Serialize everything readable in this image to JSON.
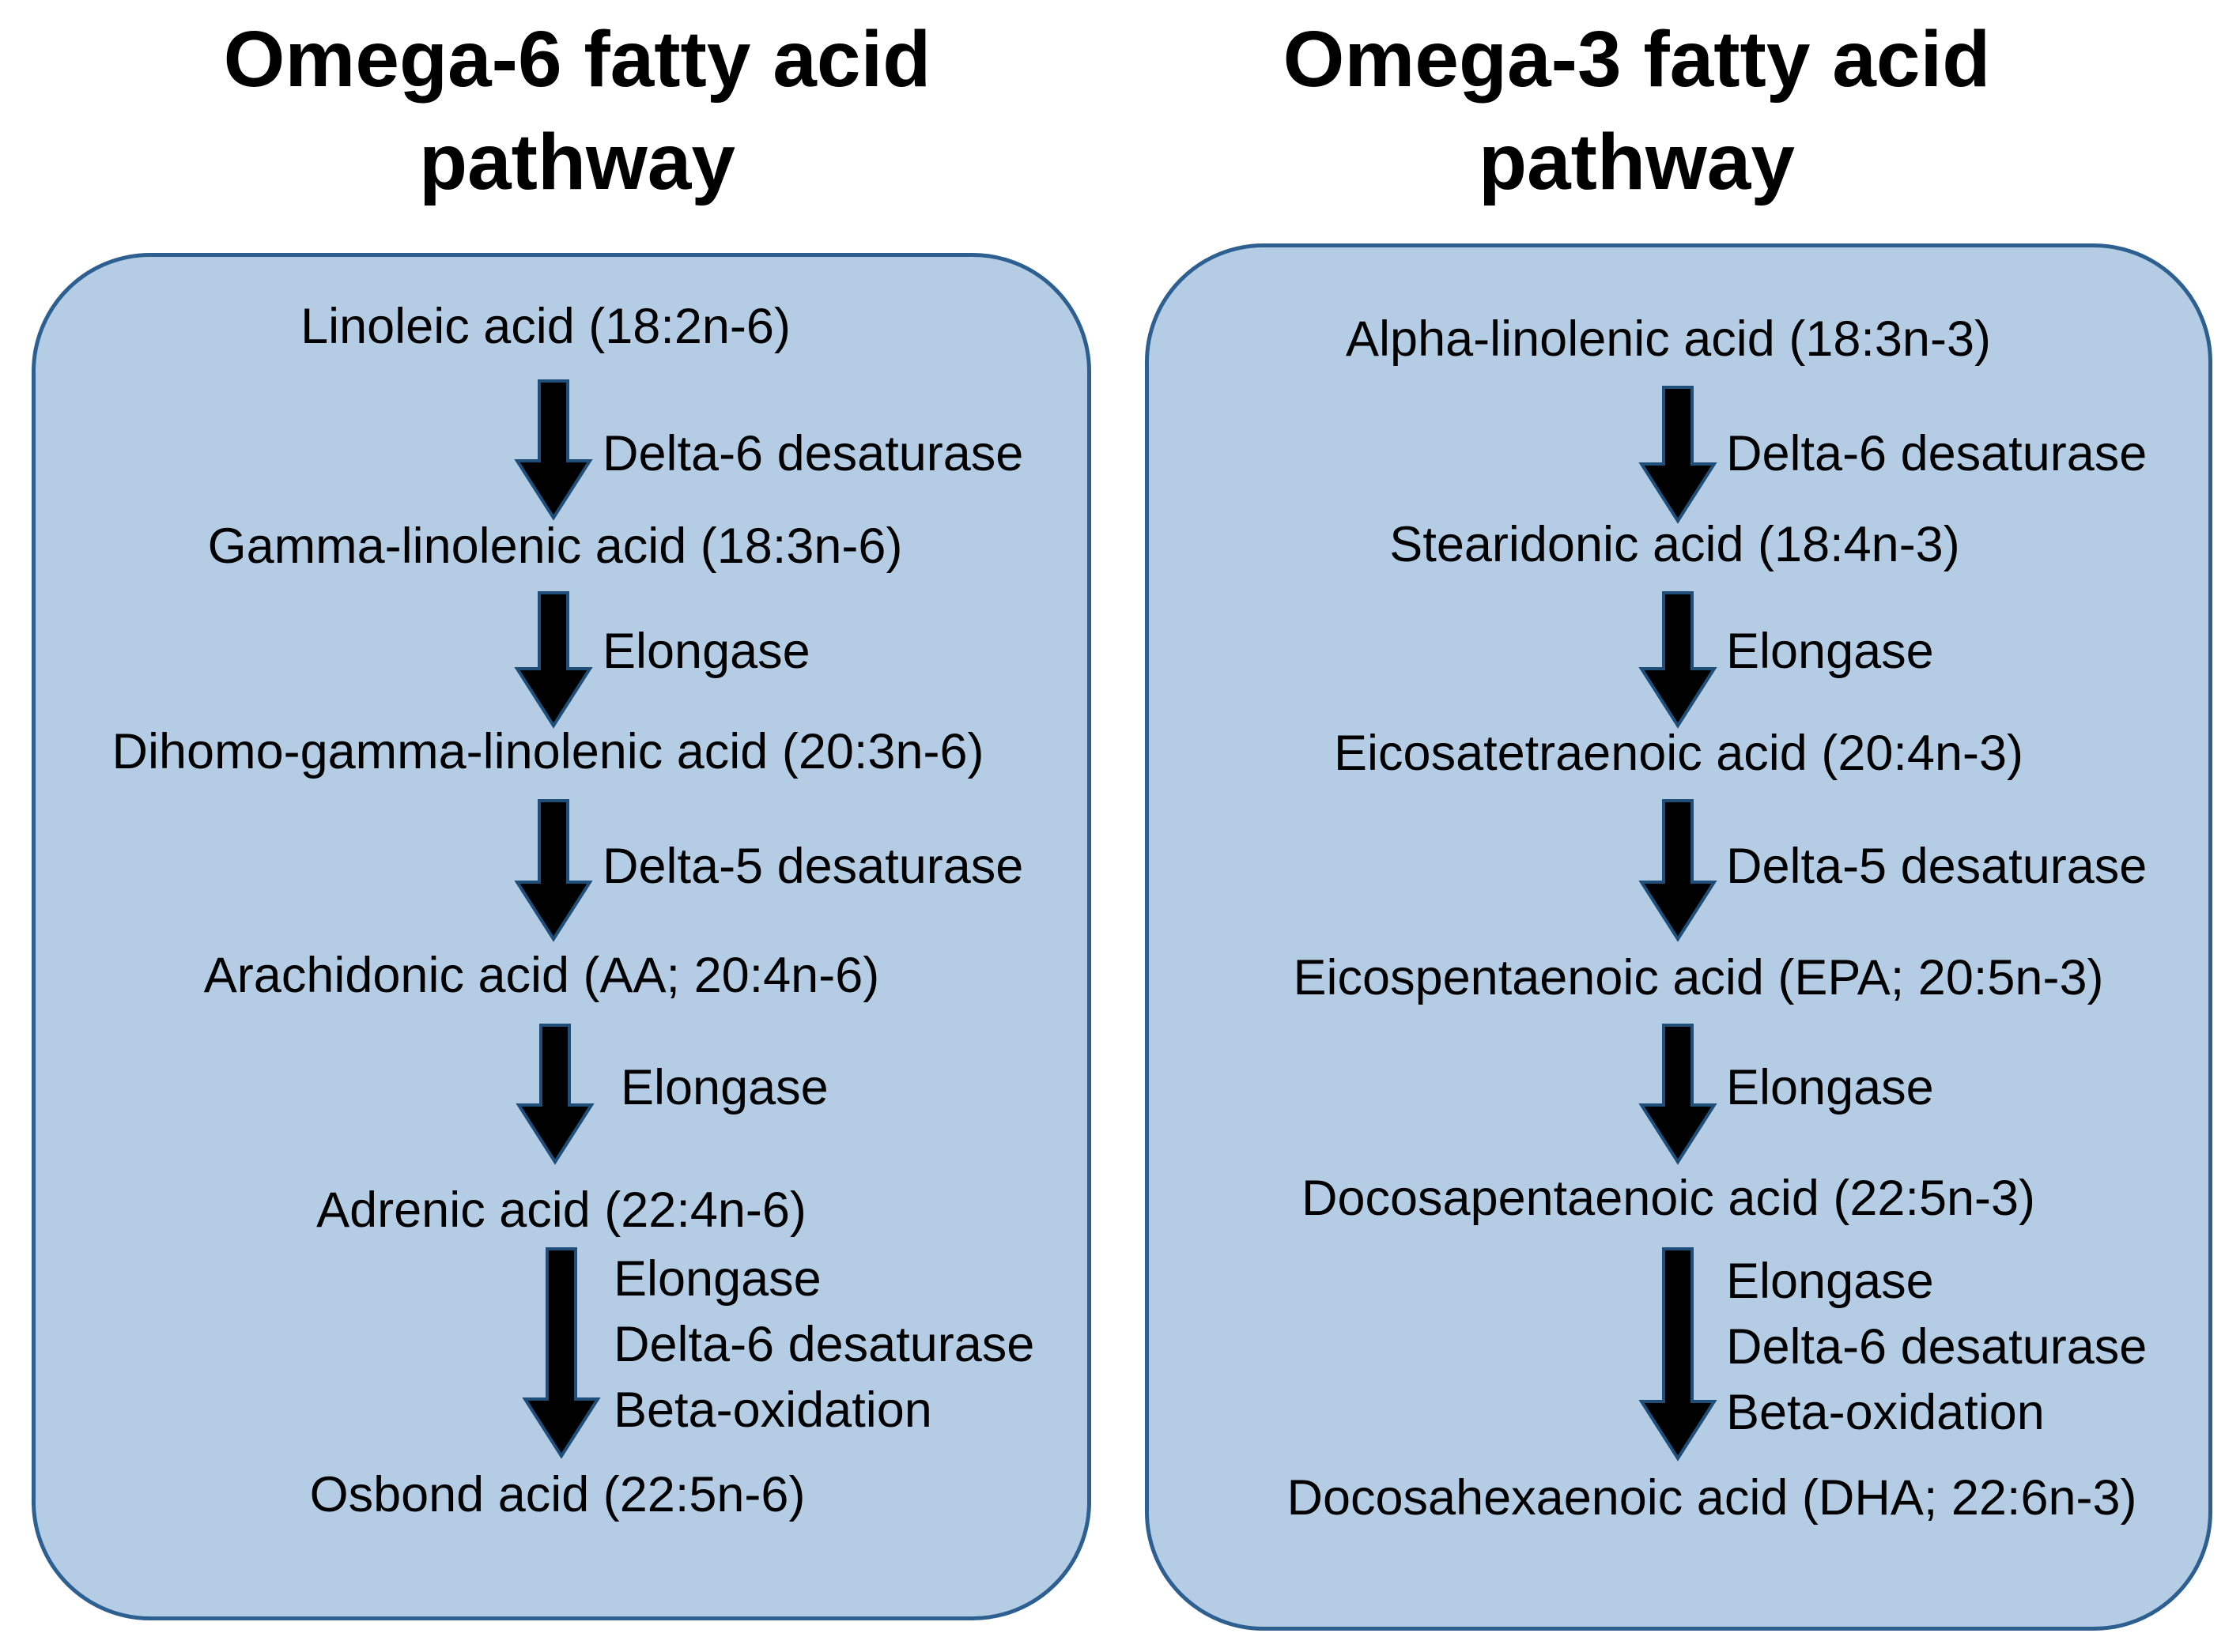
{
  "omega6": {
    "title_line1": "Omega-6 fatty acid",
    "title_line2": "pathway",
    "acids": [
      "Linoleic acid (18:2n-6)",
      "Gamma-linolenic acid (18:3n-6)",
      "Dihomo-gamma-linolenic acid (20:3n-6)",
      "Arachidonic acid (AA; 20:4n-6)",
      "Adrenic acid (22:4n-6)",
      "Osbond acid (22:5n-6)"
    ],
    "steps": [
      [
        "Delta-6 desaturase"
      ],
      [
        "Elongase"
      ],
      [
        "Delta-5 desaturase"
      ],
      [
        "Elongase"
      ],
      [
        "Elongase",
        "Delta-6 desaturase",
        "Beta-oxidation"
      ]
    ]
  },
  "omega3": {
    "title_line1": "Omega-3 fatty acid",
    "title_line2": "pathway",
    "acids": [
      "Alpha-linolenic acid (18:3n-3)",
      "Stearidonic acid (18:4n-3)",
      "Eicosatetraenoic acid (20:4n-3)",
      "Eicospentaenoic acid (EPA; 20:5n-3)",
      "Docosapentaenoic acid (22:5n-3)",
      "Docosahexaenoic acid (DHA; 22:6n-3)"
    ],
    "steps": [
      [
        "Delta-6 desaturase"
      ],
      [
        "Elongase"
      ],
      [
        "Delta-5 desaturase"
      ],
      [
        "Elongase"
      ],
      [
        "Elongase",
        "Delta-6 desaturase",
        "Beta-oxidation"
      ]
    ]
  },
  "colors": {
    "panel_fill": "#b4cde4",
    "panel_border": "#2e5f91",
    "arrow_fill": "#000000",
    "arrow_outline": "#1f4e79"
  }
}
